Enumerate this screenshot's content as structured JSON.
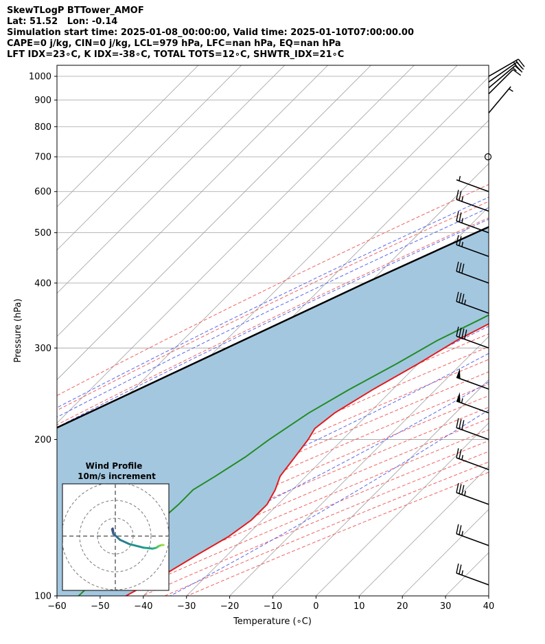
{
  "header": {
    "line1": "SkewTLogP BTTower_AMOF",
    "line2": "Lat: 51.52   Lon: -0.14",
    "line3": "Simulation start time: 2025-01-08_00:00:00, Valid time: 2025-01-10T07:00:00.00",
    "line4": "CAPE=0 j/kg, CIN=0 j/kg, LCL=979 hPa, LFC=nan hPa, EQ=nan hPa",
    "line5": "LFT IDX=23∘C, K IDX=-38∘C, TOTAL TOTS=12∘C, SHWTR_IDX=21∘C"
  },
  "chart_data": {
    "type": "line",
    "xlabel": "Temperature (∘C)",
    "ylabel": "Pressure (hPa)",
    "xlim": [
      -60,
      40
    ],
    "ylim": [
      1050,
      100
    ],
    "log_y": true,
    "skew": true,
    "grid": true,
    "x_ticks": [
      -60,
      -50,
      -40,
      -30,
      -20,
      -10,
      0,
      10,
      20,
      30,
      40
    ],
    "y_ticks": [
      1000,
      900,
      800,
      700,
      600,
      500,
      400,
      300,
      200,
      100
    ],
    "colors": {
      "temperature": "#e41a1c",
      "dewpoint": "#228b22",
      "parcel": "#000000",
      "shade": "#a3c7df",
      "dry_adiabat": "#f06060",
      "moist_adiabat": "#5566ee",
      "mixing_ratio": "#9b4fd0",
      "isotherm": "#a0a0a0"
    },
    "series": [
      {
        "role": "temperature",
        "points": [
          [
            1003,
            2.5
          ],
          [
            995,
            3.6
          ],
          [
            985,
            4.0
          ],
          [
            960,
            3.5
          ],
          [
            930,
            2.8
          ],
          [
            900,
            1.5
          ],
          [
            860,
            -0.5
          ],
          [
            820,
            -2.5
          ],
          [
            785,
            -4.0
          ],
          [
            750,
            -4.5
          ],
          [
            715,
            -4.5
          ],
          [
            685,
            -3.0
          ],
          [
            660,
            -1.0
          ],
          [
            630,
            0.5
          ],
          [
            600,
            0.5
          ],
          [
            570,
            -0.5
          ],
          [
            540,
            -2.0
          ],
          [
            500,
            -5.0
          ],
          [
            460,
            -8.5
          ],
          [
            420,
            -12.5
          ],
          [
            380,
            -17.0
          ],
          [
            340,
            -22.0
          ],
          [
            310,
            -26.5
          ],
          [
            280,
            -30.0
          ],
          [
            250,
            -34.5
          ],
          [
            225,
            -38.0
          ],
          [
            210,
            -39.0
          ],
          [
            200,
            -38.0
          ],
          [
            185,
            -37.0
          ],
          [
            170,
            -36.0
          ],
          [
            160,
            -34.0
          ],
          [
            150,
            -32.5
          ],
          [
            140,
            -32.5
          ],
          [
            130,
            -34.0
          ],
          [
            120,
            -37.0
          ],
          [
            110,
            -40.0
          ],
          [
            100,
            -44.0
          ]
        ]
      },
      {
        "role": "dewpoint",
        "points": [
          [
            1003,
            0.5
          ],
          [
            995,
            0.0
          ],
          [
            985,
            -1.0
          ],
          [
            965,
            -6.0
          ],
          [
            945,
            -10.0
          ],
          [
            925,
            -13.0
          ],
          [
            900,
            -15.5
          ],
          [
            870,
            -18.0
          ],
          [
            830,
            -21.5
          ],
          [
            790,
            -25.0
          ],
          [
            750,
            -28.0
          ],
          [
            710,
            -32.0
          ],
          [
            685,
            -33.0
          ],
          [
            660,
            -28.5
          ],
          [
            640,
            -24.0
          ],
          [
            625,
            -15.0
          ],
          [
            600,
            -2.0
          ],
          [
            575,
            -1.5
          ],
          [
            540,
            -4.5
          ],
          [
            500,
            -8.0
          ],
          [
            460,
            -11.5
          ],
          [
            420,
            -15.5
          ],
          [
            380,
            -20.5
          ],
          [
            340,
            -26.0
          ],
          [
            310,
            -31.0
          ],
          [
            280,
            -35.0
          ],
          [
            250,
            -40.0
          ],
          [
            225,
            -44.0
          ],
          [
            200,
            -47.0
          ],
          [
            185,
            -48.5
          ],
          [
            170,
            -51.0
          ],
          [
            160,
            -53.0
          ],
          [
            150,
            -53.0
          ],
          [
            130,
            -54.0
          ],
          [
            115,
            -54.5
          ],
          [
            100,
            -55.0
          ]
        ]
      },
      {
        "role": "parcel",
        "points": [
          [
            1003,
            1.5
          ],
          [
            979,
            0.5
          ],
          [
            900,
            -6.0
          ],
          [
            800,
            -14.5
          ],
          [
            700,
            -24.0
          ],
          [
            600,
            -35.0
          ],
          [
            500,
            -47.0
          ],
          [
            400,
            -61.0
          ],
          [
            300,
            -78.0
          ],
          [
            200,
            -102.0
          ],
          [
            150,
            -119.0
          ],
          [
            100,
            -142.0
          ]
        ]
      }
    ],
    "wind_barbs": [
      {
        "p": 1000,
        "speed_kt": 25,
        "dir_deg": 60
      },
      {
        "p": 975,
        "speed_kt": 20,
        "dir_deg": 55
      },
      {
        "p": 950,
        "speed_kt": 15,
        "dir_deg": 50
      },
      {
        "p": 925,
        "speed_kt": 10,
        "dir_deg": 45
      },
      {
        "p": 850,
        "speed_kt": 5,
        "dir_deg": 40
      },
      {
        "p": 700,
        "speed_kt": 0,
        "dir_deg": 0
      },
      {
        "p": 600,
        "speed_kt": 5,
        "dir_deg": 290
      },
      {
        "p": 550,
        "speed_kt": 25,
        "dir_deg": 290
      },
      {
        "p": 500,
        "speed_kt": 25,
        "dir_deg": 290
      },
      {
        "p": 450,
        "speed_kt": 25,
        "dir_deg": 290
      },
      {
        "p": 400,
        "speed_kt": 30,
        "dir_deg": 290
      },
      {
        "p": 350,
        "speed_kt": 35,
        "dir_deg": 290
      },
      {
        "p": 300,
        "speed_kt": 40,
        "dir_deg": 290
      },
      {
        "p": 250,
        "speed_kt": 50,
        "dir_deg": 290
      },
      {
        "p": 225,
        "speed_kt": 55,
        "dir_deg": 290
      },
      {
        "p": 200,
        "speed_kt": 30,
        "dir_deg": 290
      },
      {
        "p": 175,
        "speed_kt": 25,
        "dir_deg": 290
      },
      {
        "p": 150,
        "speed_kt": 35,
        "dir_deg": 290
      },
      {
        "p": 125,
        "speed_kt": 25,
        "dir_deg": 290
      },
      {
        "p": 105,
        "speed_kt": 25,
        "dir_deg": 290
      }
    ],
    "inset": {
      "title": "Wind Profile",
      "subtitle": "10m/s increment",
      "rings": [
        10,
        20,
        30
      ],
      "hodograph": [
        [
          -1,
          1
        ],
        [
          -1.3,
          3.2
        ],
        [
          -1.5,
          4.2
        ],
        [
          -1.8,
          3.8
        ],
        [
          -1.2,
          1.5
        ],
        [
          2.5,
          -2.0
        ],
        [
          8.0,
          -4.5
        ],
        [
          16.0,
          -6.5
        ],
        [
          21.0,
          -7.0
        ],
        [
          23.0,
          -6.5
        ],
        [
          24.5,
          -5.5
        ],
        [
          26.0,
          -5.0
        ],
        [
          27.0,
          -5.0
        ]
      ]
    }
  }
}
